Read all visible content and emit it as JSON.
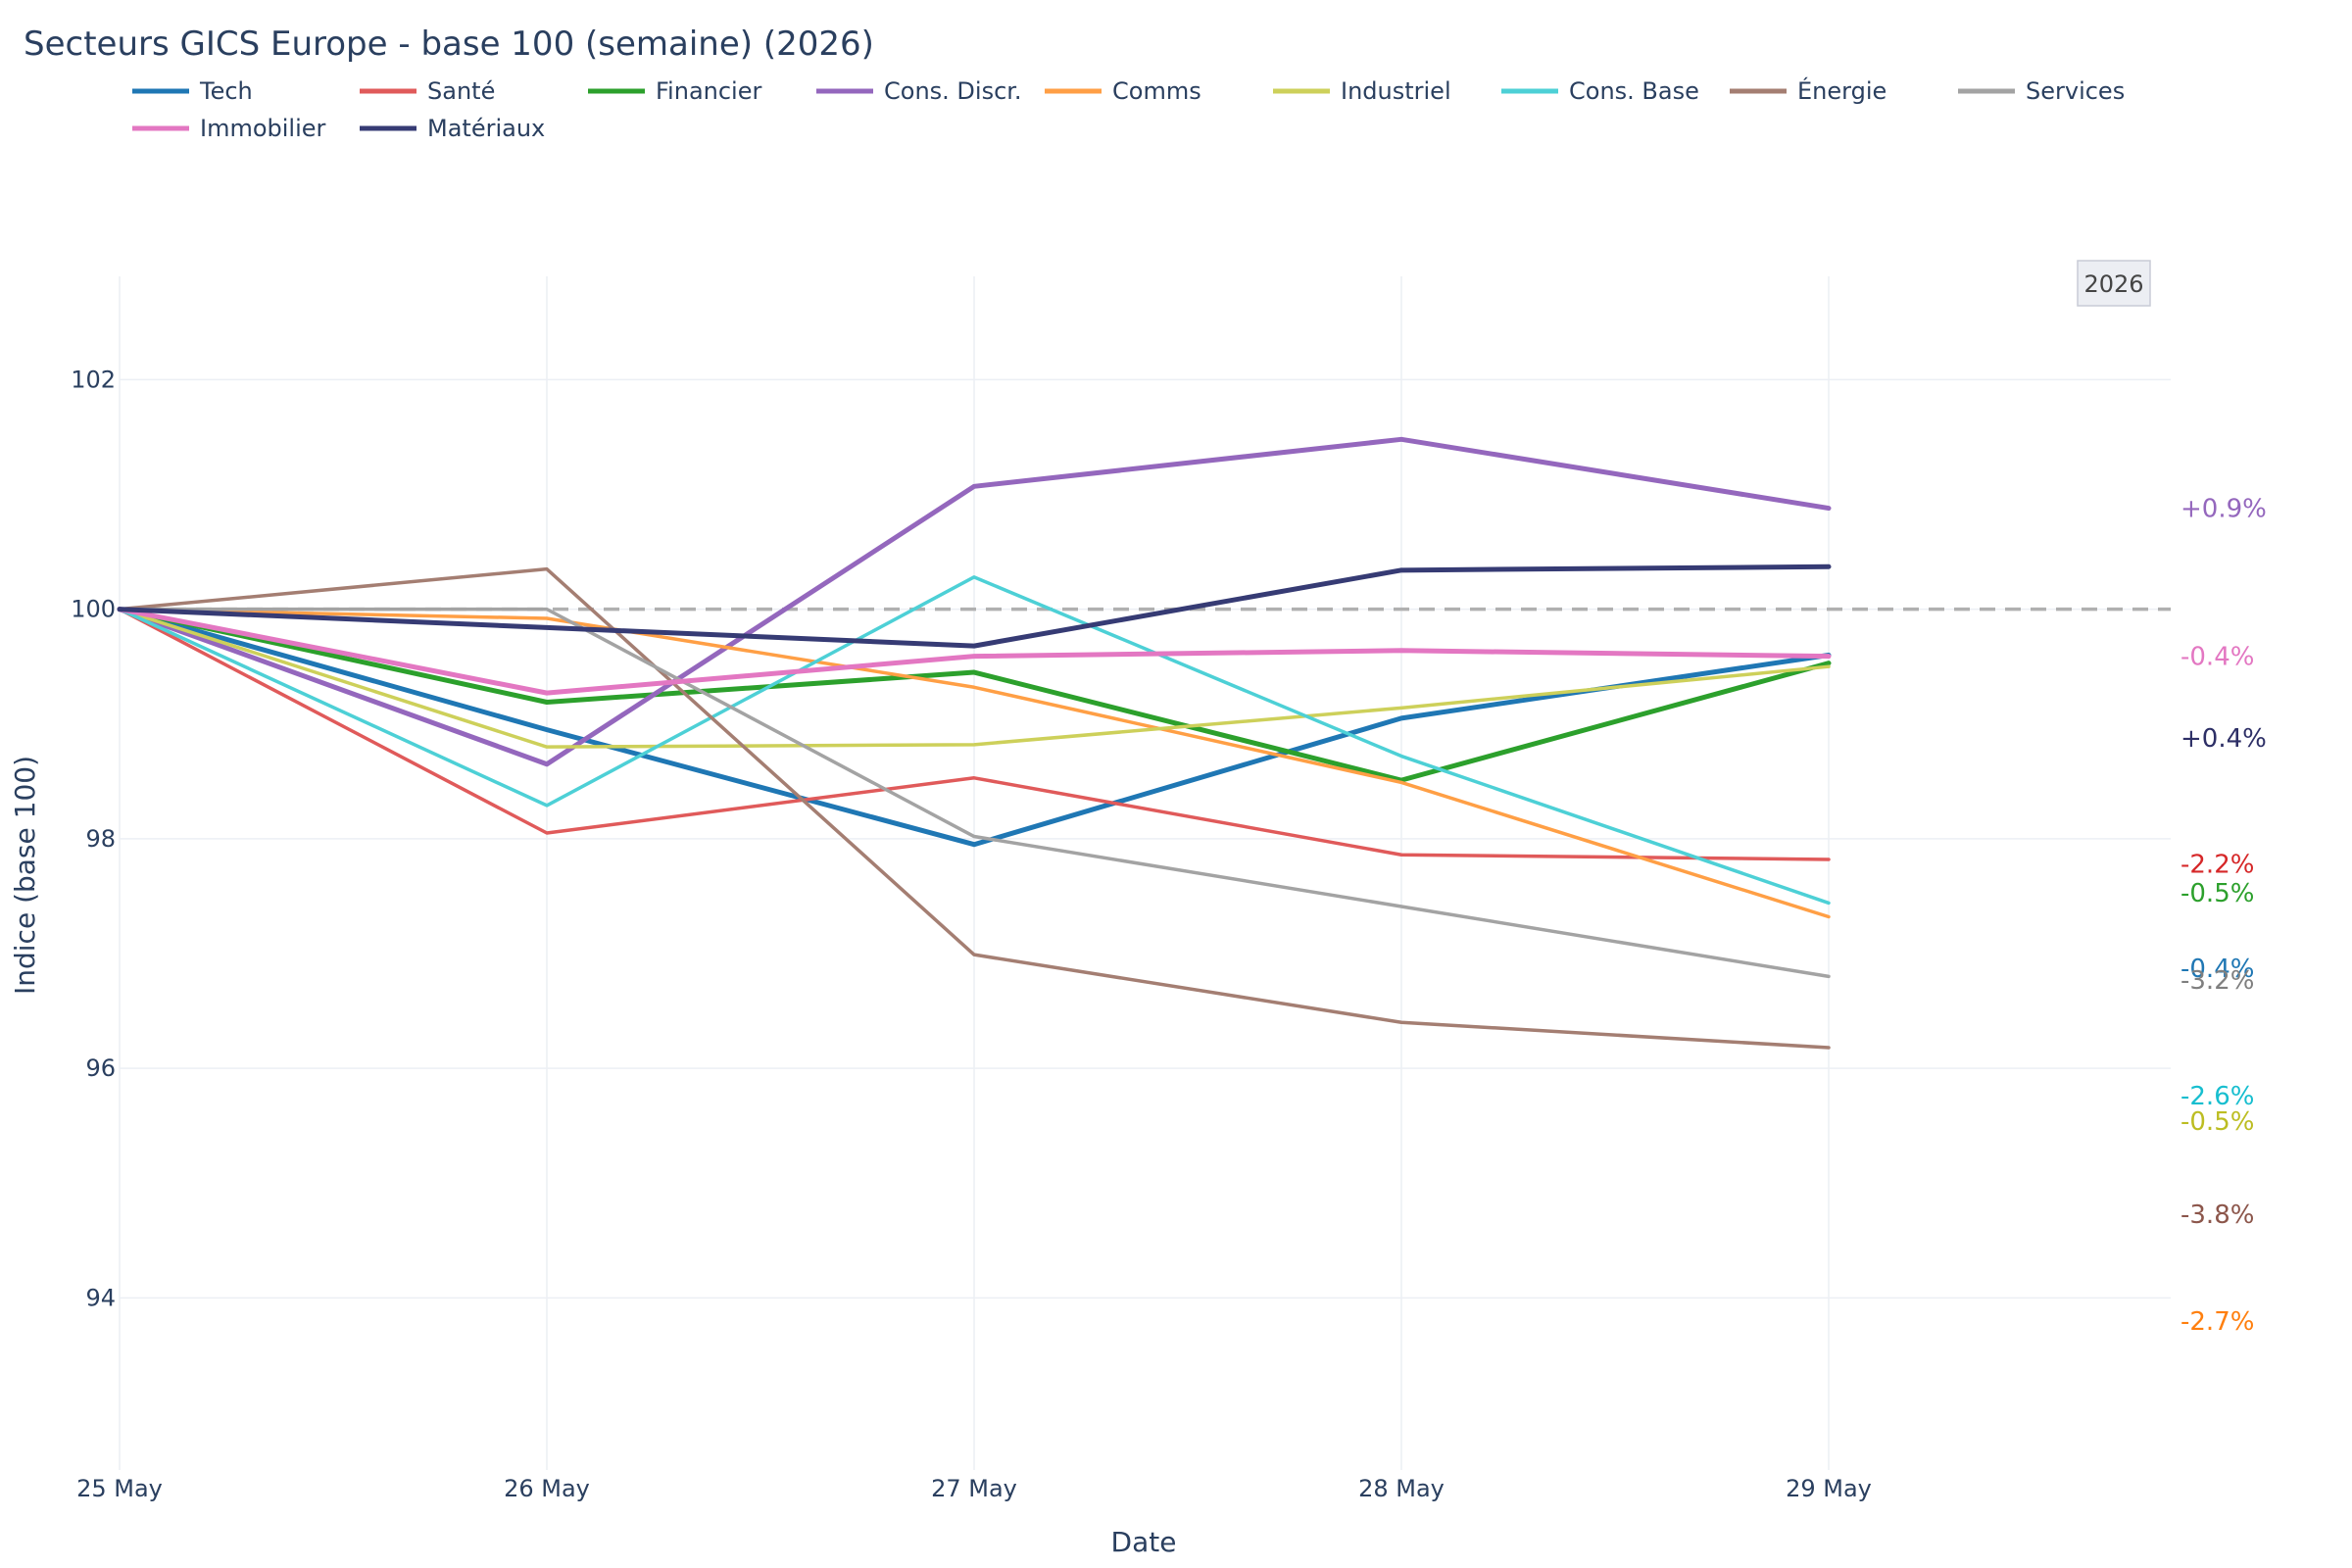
{
  "chart_data": {
    "type": "line",
    "title": "Secteurs GICS Europe - base 100 (semaine) (2026)",
    "xlabel": "Date",
    "ylabel": "Indice (base 100)",
    "x": [
      "25 May",
      "26 May",
      "27 May",
      "28 May",
      "29 May"
    ],
    "ylim": [
      92.5,
      102.9
    ],
    "yticks": [
      94,
      96,
      98,
      100,
      102
    ],
    "grid": true,
    "legend_position": "top",
    "reference_line": {
      "y": 100,
      "style": "dashed",
      "color": "#b0b0b0"
    },
    "badge": "2026",
    "series": [
      {
        "name": "Tech",
        "color": "#1f77b4",
        "values": [
          100,
          98.95,
          97.95,
          99.05,
          99.6
        ],
        "end_label": "-0.4%",
        "end_label_color": "#1f77b4",
        "end_label_y": 96.87
      },
      {
        "name": "Santé",
        "color": "#e05a5a",
        "values": [
          100,
          98.05,
          98.53,
          97.86,
          97.82
        ],
        "end_label": "-2.2%",
        "end_label_color": "#d62728",
        "end_label_y": 97.78
      },
      {
        "name": "Financier",
        "color": "#2ca02c",
        "values": [
          100,
          99.19,
          99.45,
          98.51,
          99.53
        ],
        "end_label": "-0.5%",
        "end_label_color": "#2ca02c",
        "end_label_y": 97.53
      },
      {
        "name": "Cons. Discr.",
        "color": "#9467bd",
        "values": [
          100,
          98.65,
          101.07,
          101.48,
          100.88
        ],
        "end_label": "+0.9%",
        "end_label_color": "#9467bd",
        "end_label_y": 100.88
      },
      {
        "name": "Comms",
        "color": "#ff9f45",
        "values": [
          100,
          99.92,
          99.32,
          98.49,
          97.32
        ],
        "end_label": "-2.7%",
        "end_label_color": "#ff7f0e",
        "end_label_y": 93.8
      },
      {
        "name": "Industriel",
        "color": "#cdd05a",
        "values": [
          100,
          98.8,
          98.82,
          99.14,
          99.5
        ],
        "end_label": "-0.5%",
        "end_label_color": "#bcbd22",
        "end_label_y": 95.54
      },
      {
        "name": "Cons. Base",
        "color": "#4dd0d6",
        "values": [
          100,
          98.29,
          100.28,
          98.72,
          97.44
        ],
        "end_label": "-2.6%",
        "end_label_color": "#17becf",
        "end_label_y": 95.76
      },
      {
        "name": "Énergie",
        "color": "#a47e72",
        "values": [
          100,
          100.35,
          96.99,
          96.4,
          96.18
        ],
        "end_label": "-3.8%",
        "end_label_color": "#8c564b",
        "end_label_y": 94.73
      },
      {
        "name": "Services",
        "color": "#a3a3a3",
        "values": [
          100,
          100,
          98.02,
          97.41,
          96.8
        ],
        "end_label": "-3.2%",
        "end_label_color": "#7f7f7f",
        "end_label_y": 96.77
      },
      {
        "name": "Immobilier",
        "color": "#e377c2",
        "values": [
          100,
          99.27,
          99.59,
          99.64,
          99.59
        ],
        "end_label": "-0.4%",
        "end_label_color": "#e377c2",
        "end_label_y": 99.59
      },
      {
        "name": "Matériaux",
        "color": "#363b74",
        "values": [
          100,
          99.84,
          99.68,
          100.34,
          100.37
        ],
        "end_label": "+0.4%",
        "end_label_color": "#2d2f66",
        "end_label_y": 98.88
      }
    ]
  }
}
